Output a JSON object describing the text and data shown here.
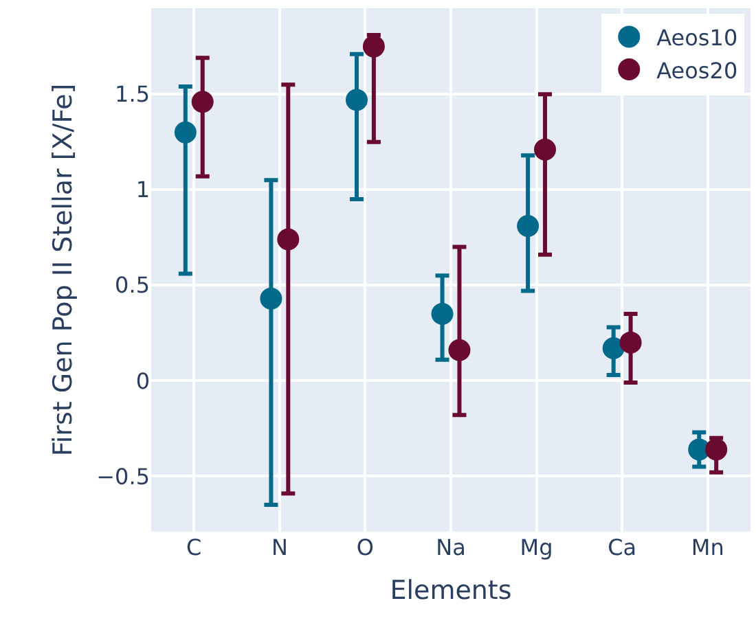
{
  "chart_data": {
    "type": "scatter",
    "xlabel": "Elements",
    "ylabel": "First Gen Pop II Stellar [X/Fe]",
    "categories": [
      "C",
      "N",
      "O",
      "Na",
      "Mg",
      "Ca",
      "Mn"
    ],
    "series": [
      {
        "name": "Aeos10",
        "color": "#036a8c",
        "values": [
          1.3,
          0.43,
          1.47,
          0.35,
          0.81,
          0.17,
          -0.36
        ],
        "errors": [
          [
            0.56,
            1.54
          ],
          [
            -0.65,
            1.05
          ],
          [
            0.95,
            1.71
          ],
          [
            0.11,
            0.55
          ],
          [
            0.47,
            1.18
          ],
          [
            0.03,
            0.28
          ],
          [
            -0.45,
            -0.27
          ]
        ]
      },
      {
        "name": "Aeos20",
        "color": "#6a0a30",
        "values": [
          1.46,
          0.74,
          1.75,
          0.16,
          1.21,
          0.2,
          -0.36
        ],
        "errors": [
          [
            1.07,
            1.69
          ],
          [
            -0.59,
            1.55
          ],
          [
            1.25,
            1.81
          ],
          [
            -0.18,
            0.7
          ],
          [
            0.66,
            1.5
          ],
          [
            -0.01,
            0.35
          ],
          [
            -0.48,
            -0.3
          ]
        ]
      }
    ],
    "ylim": [
      -0.79,
      1.95
    ],
    "yticks": [
      {
        "value": -0.5,
        "label": "−0.5"
      },
      0,
      0.5,
      1,
      1.5
    ],
    "grid": true,
    "legend": "top right",
    "marker": "circle"
  }
}
